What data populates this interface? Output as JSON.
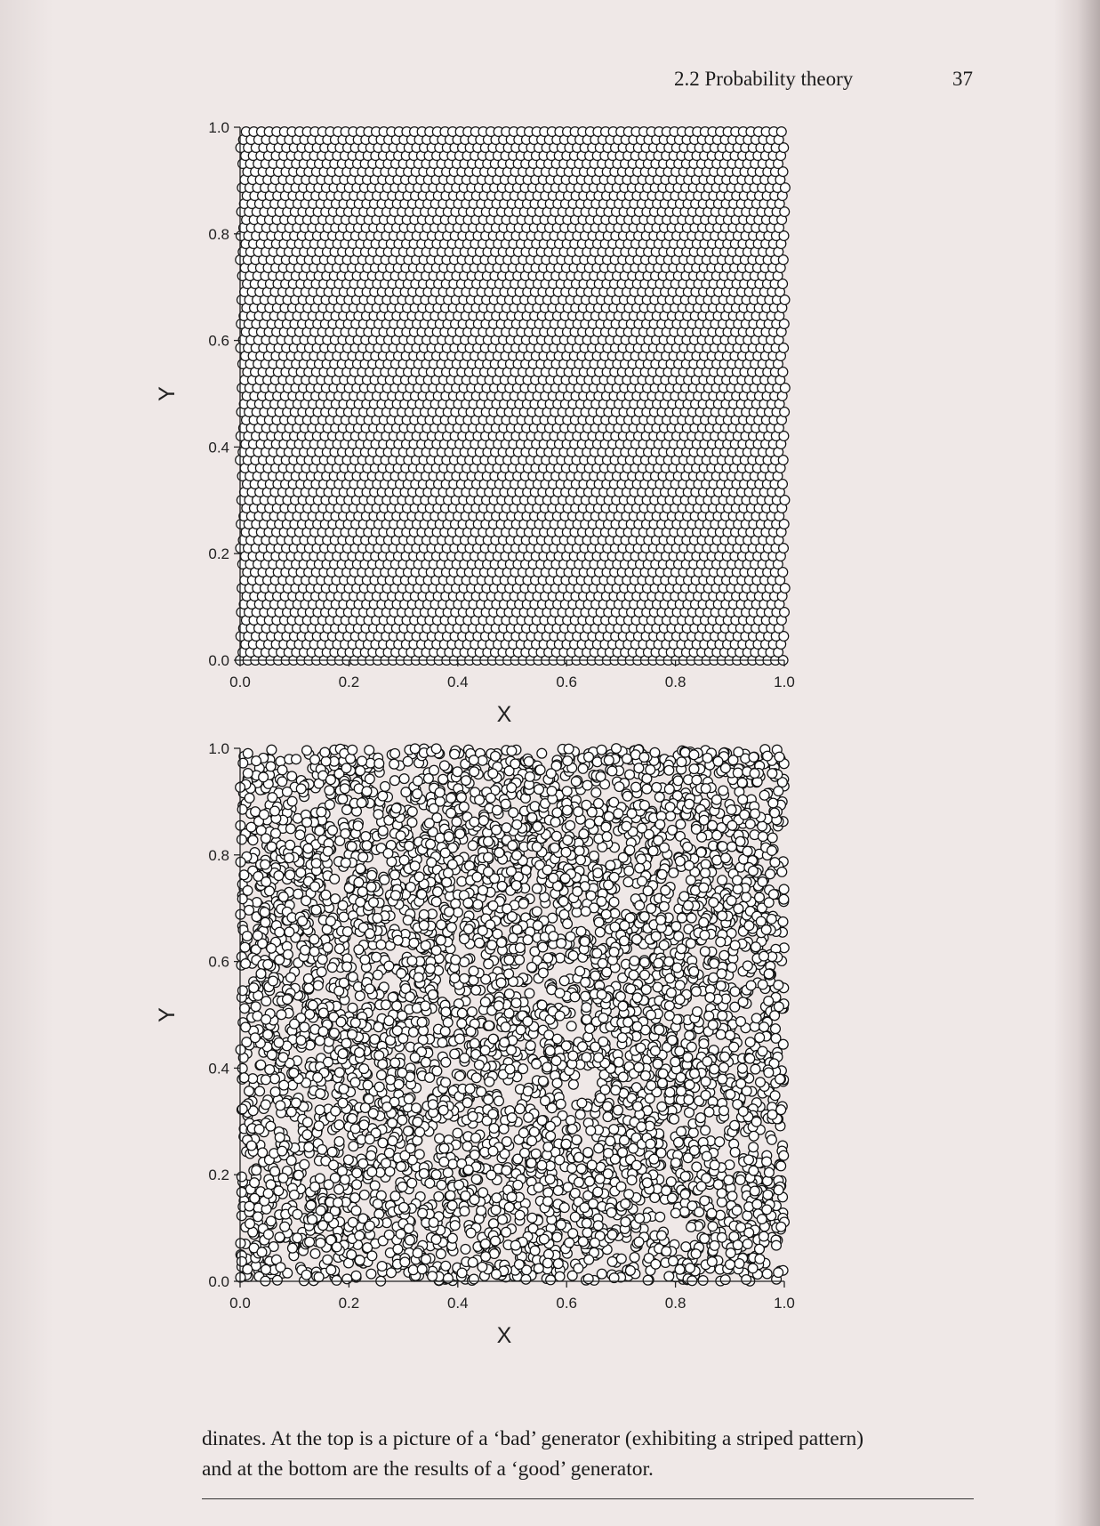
{
  "header": {
    "section_title": "2.2 Probability theory",
    "page_number": "37"
  },
  "chart_data": [
    {
      "type": "scatter",
      "panel": "top",
      "xlabel": "X",
      "ylabel": "Y",
      "xlim": [
        0.0,
        1.0
      ],
      "ylim": [
        0.0,
        1.0
      ],
      "x_ticks": [
        "0.0",
        "0.2",
        "0.4",
        "0.6",
        "0.8",
        "1.0"
      ],
      "y_ticks": [
        "0.0",
        "0.2",
        "0.4",
        "0.6",
        "0.8",
        "1.0"
      ],
      "marker": "open-circle",
      "pattern": "striped"
    },
    {
      "type": "scatter",
      "panel": "bottom",
      "xlabel": "X",
      "ylabel": "Y",
      "xlim": [
        0.0,
        1.0
      ],
      "ylim": [
        0.0,
        1.0
      ],
      "x_ticks": [
        "0.0",
        "0.2",
        "0.4",
        "0.6",
        "0.8",
        "1.0"
      ],
      "y_ticks": [
        "0.0",
        "0.2",
        "0.4",
        "0.6",
        "0.8",
        "1.0"
      ],
      "marker": "open-circle",
      "pattern": "random"
    }
  ],
  "caption": {
    "line1": "dinates. At the top is a picture of a ‘bad’ generator (exhibiting a striped pattern)",
    "line2": "and at the bottom are the results of a ‘good’ generator."
  }
}
